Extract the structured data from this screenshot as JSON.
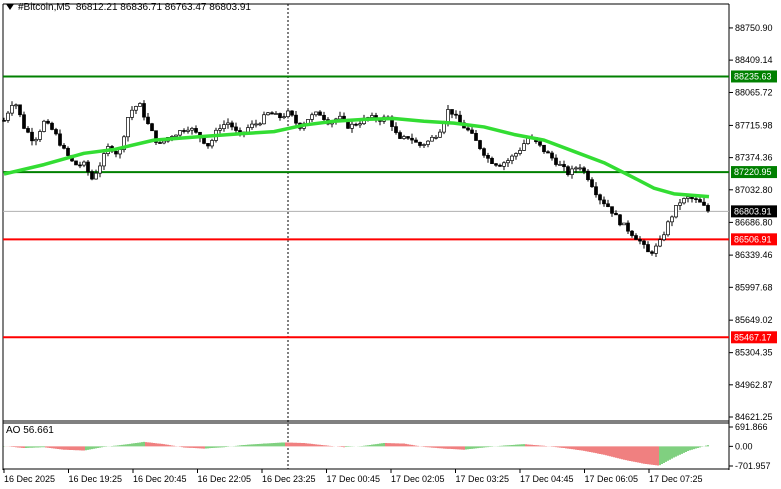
{
  "header": {
    "symbol": "#Bitcoin,M5",
    "ohlc": "86812.21 86836.71 86763.47 86803.91"
  },
  "indicator": {
    "label": "AO 56.661",
    "ticks": [
      "691.866",
      "0.00",
      "-701.957"
    ]
  },
  "chart_data": {
    "type": "candlestick",
    "symbol": "#Bitcoin",
    "timeframe": "M5",
    "ylim": [
      84621.25,
      88835.0
    ],
    "y_ticks": [
      "88750.90",
      "88409.14",
      "88065.72",
      "87715.98",
      "87374.36",
      "87032.80",
      "86686.80",
      "86339.46",
      "85997.68",
      "85649.02",
      "85304.35",
      "84962.87",
      "84621.25"
    ],
    "x_ticks": [
      "16 Dec 2025",
      "16 Dec 19:25",
      "16 Dec 20:45",
      "16 Dec 22:05",
      "16 Dec 23:25",
      "17 Dec 00:45",
      "17 Dec 02:05",
      "17 Dec 03:25",
      "17 Dec 04:45",
      "17 Dec 06:05",
      "17 Dec 07:25"
    ],
    "current_price": "86803.91",
    "horizontal_levels": [
      {
        "label": "88235.63",
        "value": 88235.63,
        "color": "#008000"
      },
      {
        "label": "87220.95",
        "value": 87220.95,
        "color": "#008000"
      },
      {
        "label": "86506.91",
        "value": 86506.91,
        "color": "#ff0000"
      },
      {
        "label": "85467.17",
        "value": 85467.17,
        "color": "#ff0000"
      }
    ],
    "close_path": [
      [
        0,
        87770
      ],
      [
        10,
        88000
      ],
      [
        20,
        87700
      ],
      [
        30,
        87550
      ],
      [
        40,
        87750
      ],
      [
        50,
        87650
      ],
      [
        60,
        87450
      ],
      [
        70,
        87300
      ],
      [
        80,
        87300
      ],
      [
        88,
        87150
      ],
      [
        96,
        87300
      ],
      [
        105,
        87500
      ],
      [
        115,
        87400
      ],
      [
        125,
        87850
      ],
      [
        135,
        87950
      ],
      [
        145,
        87700
      ],
      [
        155,
        87500
      ],
      [
        165,
        87600
      ],
      [
        175,
        87650
      ],
      [
        185,
        87700
      ],
      [
        195,
        87600
      ],
      [
        205,
        87500
      ],
      [
        215,
        87700
      ],
      [
        225,
        87750
      ],
      [
        235,
        87600
      ],
      [
        245,
        87700
      ],
      [
        255,
        87750
      ],
      [
        265,
        87850
      ],
      [
        275,
        87800
      ],
      [
        285,
        87850
      ],
      [
        295,
        87700
      ],
      [
        305,
        87800
      ],
      [
        315,
        87850
      ],
      [
        325,
        87750
      ],
      [
        335,
        87800
      ],
      [
        345,
        87700
      ],
      [
        355,
        87750
      ],
      [
        365,
        87800
      ],
      [
        375,
        87780
      ],
      [
        385,
        87800
      ],
      [
        395,
        87550
      ],
      [
        405,
        87600
      ],
      [
        415,
        87500
      ],
      [
        425,
        87550
      ],
      [
        435,
        87650
      ],
      [
        445,
        87900
      ],
      [
        455,
        87750
      ],
      [
        465,
        87650
      ],
      [
        475,
        87500
      ],
      [
        485,
        87350
      ],
      [
        495,
        87300
      ],
      [
        505,
        87350
      ],
      [
        515,
        87450
      ],
      [
        525,
        87600
      ],
      [
        535,
        87500
      ],
      [
        545,
        87400
      ],
      [
        555,
        87300
      ],
      [
        565,
        87200
      ],
      [
        575,
        87300
      ],
      [
        585,
        87150
      ],
      [
        595,
        86950
      ],
      [
        605,
        86850
      ],
      [
        615,
        86700
      ],
      [
        625,
        86600
      ],
      [
        635,
        86500
      ],
      [
        645,
        86350
      ],
      [
        655,
        86450
      ],
      [
        665,
        86700
      ],
      [
        675,
        86900
      ],
      [
        685,
        86950
      ],
      [
        695,
        86900
      ],
      [
        705,
        86800
      ]
    ],
    "ma_path": [
      [
        0,
        87200
      ],
      [
        40,
        87300
      ],
      [
        80,
        87420
      ],
      [
        110,
        87460
      ],
      [
        150,
        87560
      ],
      [
        200,
        87600
      ],
      [
        240,
        87630
      ],
      [
        270,
        87650
      ],
      [
        300,
        87720
      ],
      [
        330,
        87760
      ],
      [
        360,
        87780
      ],
      [
        390,
        87790
      ],
      [
        420,
        87760
      ],
      [
        450,
        87740
      ],
      [
        480,
        87700
      ],
      [
        510,
        87620
      ],
      [
        540,
        87560
      ],
      [
        570,
        87440
      ],
      [
        600,
        87320
      ],
      [
        630,
        87160
      ],
      [
        650,
        87050
      ],
      [
        670,
        86990
      ],
      [
        705,
        86960
      ]
    ],
    "ao_path": [
      [
        0,
        10
      ],
      [
        20,
        -60
      ],
      [
        40,
        -30
      ],
      [
        60,
        -120
      ],
      [
        80,
        -150
      ],
      [
        100,
        -20
      ],
      [
        120,
        60
      ],
      [
        140,
        160
      ],
      [
        160,
        80
      ],
      [
        180,
        -40
      ],
      [
        200,
        -80
      ],
      [
        220,
        -30
      ],
      [
        240,
        50
      ],
      [
        260,
        100
      ],
      [
        280,
        140
      ],
      [
        300,
        120
      ],
      [
        320,
        40
      ],
      [
        340,
        -30
      ],
      [
        360,
        20
      ],
      [
        380,
        120
      ],
      [
        400,
        100
      ],
      [
        420,
        -20
      ],
      [
        440,
        -80
      ],
      [
        460,
        -120
      ],
      [
        480,
        -40
      ],
      [
        500,
        30
      ],
      [
        520,
        80
      ],
      [
        540,
        20
      ],
      [
        560,
        -60
      ],
      [
        580,
        -160
      ],
      [
        600,
        -300
      ],
      [
        620,
        -480
      ],
      [
        640,
        -620
      ],
      [
        655,
        -690
      ],
      [
        670,
        -400
      ],
      [
        685,
        -150
      ],
      [
        705,
        56
      ]
    ],
    "ao_ylim": [
      -701.957,
      691.866
    ]
  }
}
